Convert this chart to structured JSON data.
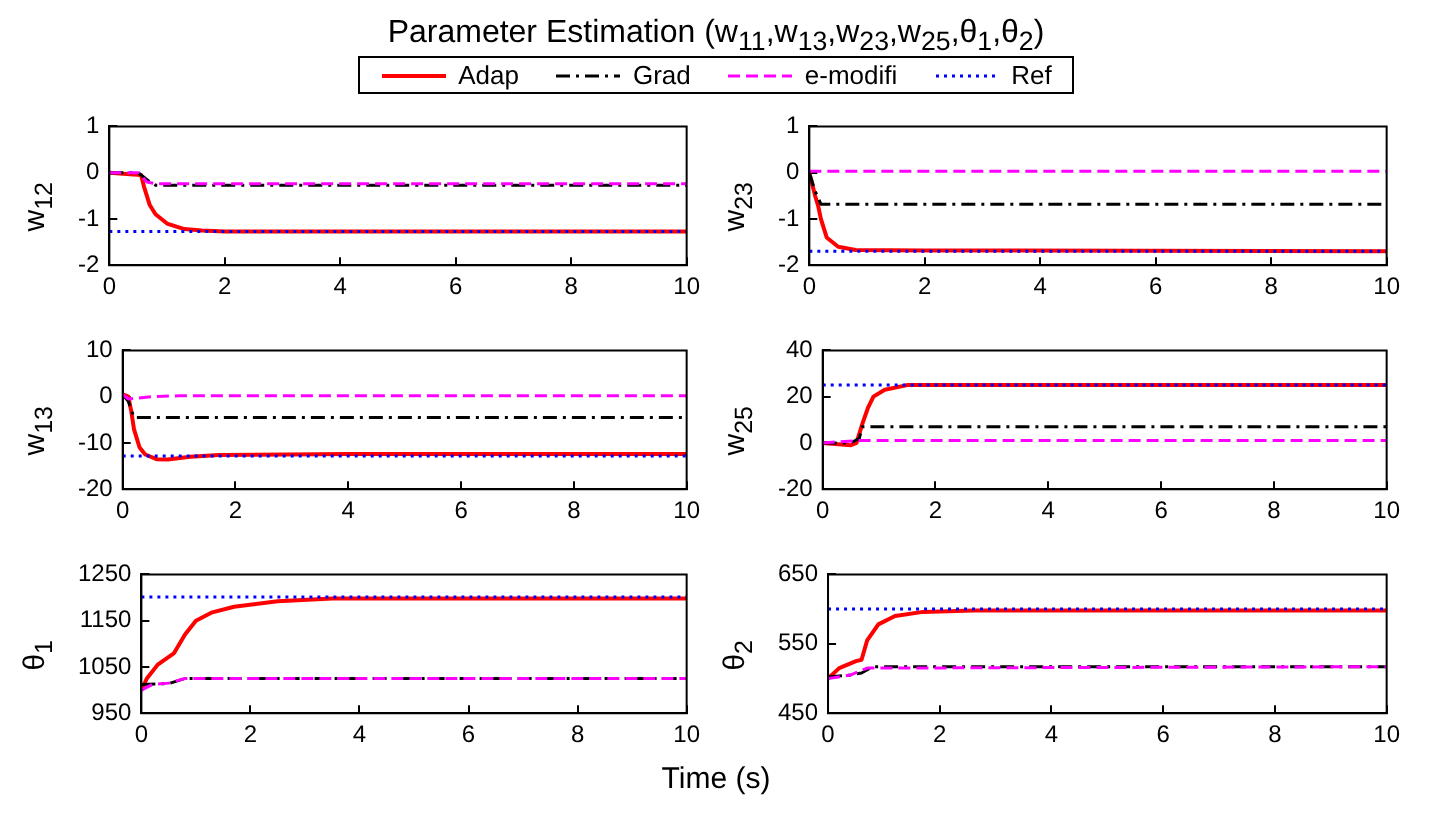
{
  "chart_data": [
    {
      "type": "line",
      "title": "Parameter Estimation (w$_{11}$,w$_{13}$,w$_{23}$,w$_{25}$,θ$_{1}$,θ$_{2}$)",
      "ylabel": "w$_{12}$",
      "xlim": [
        0,
        10
      ],
      "xticks": [
        0,
        2,
        4,
        6,
        8,
        10
      ],
      "ylim": [
        -2,
        1
      ],
      "yticks": [
        -2,
        -1,
        0,
        1
      ],
      "grid": false,
      "legend": "top",
      "marker": "none",
      "series": [
        {
          "name": "Adap",
          "color": "#ff0000",
          "line_style": "solid",
          "x": [
            0,
            0.3,
            0.55,
            0.6,
            0.7,
            0.8,
            1,
            1.3,
            1.6,
            2,
            10
          ],
          "values": [
            0,
            -0.03,
            -0.05,
            -0.3,
            -0.7,
            -0.9,
            -1.1,
            -1.22,
            -1.25,
            -1.27,
            -1.27
          ]
        },
        {
          "name": "Grad",
          "color": "#000000",
          "line_style": "dashdot",
          "x": [
            0,
            0.5,
            0.7,
            0.8,
            10
          ],
          "values": [
            0,
            0,
            -0.2,
            -0.27,
            -0.27
          ]
        },
        {
          "name": "e-modifi",
          "color": "#ff00ff",
          "line_style": "dashed",
          "x": [
            0,
            0.5,
            0.65,
            0.8,
            10
          ],
          "values": [
            0,
            0,
            -0.2,
            -0.24,
            -0.24
          ]
        },
        {
          "name": "Ref",
          "color": "#0000ff",
          "line_style": "dotted",
          "x": [
            0,
            10
          ],
          "values": [
            -1.27,
            -1.27
          ]
        }
      ]
    },
    {
      "type": "line",
      "ylabel": "w$_{23}$",
      "xlim": [
        0,
        10
      ],
      "xticks": [
        0,
        2,
        4,
        6,
        8,
        10
      ],
      "ylim": [
        -2,
        1
      ],
      "yticks": [
        -2,
        -1,
        0,
        1
      ],
      "grid": false,
      "marker": "none",
      "series": [
        {
          "color": "#ff0000",
          "line_style": "solid",
          "x": [
            0,
            0.1,
            0.15,
            0.2,
            0.3,
            0.5,
            0.8,
            2,
            10
          ],
          "values": [
            0,
            -0.5,
            -0.7,
            -1,
            -1.4,
            -1.6,
            -1.67,
            -1.68,
            -1.7
          ]
        },
        {
          "color": "#000000",
          "line_style": "dashdot",
          "x": [
            0,
            0.1,
            0.2,
            10
          ],
          "values": [
            0,
            -0.4,
            -0.68,
            -0.68
          ]
        },
        {
          "color": "#ff00ff",
          "line_style": "dashed",
          "x": [
            0,
            10
          ],
          "values": [
            0.03,
            0.03
          ]
        },
        {
          "color": "#0000ff",
          "line_style": "dotted",
          "x": [
            0,
            10
          ],
          "values": [
            -1.7,
            -1.7
          ]
        }
      ]
    },
    {
      "type": "line",
      "ylabel": "w$_{13}$",
      "xlim": [
        0,
        10
      ],
      "xticks": [
        0,
        2,
        4,
        6,
        8,
        10
      ],
      "ylim": [
        -20,
        10
      ],
      "yticks": [
        -20,
        -10,
        0,
        10
      ],
      "grid": false,
      "marker": "none",
      "series": [
        {
          "color": "#ff0000",
          "line_style": "solid",
          "x": [
            0,
            0.1,
            0.15,
            0.2,
            0.3,
            0.4,
            0.6,
            0.8,
            1.2,
            1.7,
            4,
            10
          ],
          "values": [
            0.5,
            0,
            -3,
            -7,
            -11,
            -12.5,
            -13.5,
            -13.6,
            -13,
            -12.6,
            -12.4,
            -12.4
          ]
        },
        {
          "color": "#000000",
          "line_style": "dashdot",
          "x": [
            0,
            0.1,
            0.2,
            10
          ],
          "values": [
            0.5,
            -1,
            -4.5,
            -4.5
          ]
        },
        {
          "color": "#ff00ff",
          "line_style": "dashed",
          "x": [
            0,
            0.1,
            0.5,
            1,
            10
          ],
          "values": [
            0.5,
            -0.5,
            0,
            0.2,
            0.2
          ]
        },
        {
          "color": "#0000ff",
          "line_style": "dotted",
          "x": [
            0,
            10
          ],
          "values": [
            -12.8,
            -12.8
          ]
        }
      ]
    },
    {
      "type": "line",
      "ylabel": "w$_{25}$",
      "xlim": [
        0,
        10
      ],
      "xticks": [
        0,
        2,
        4,
        6,
        8,
        10
      ],
      "ylim": [
        -20,
        40
      ],
      "yticks": [
        -20,
        0,
        20,
        40
      ],
      "grid": false,
      "marker": "none",
      "series": [
        {
          "color": "#ff0000",
          "line_style": "solid",
          "x": [
            0,
            0.5,
            0.6,
            0.7,
            0.8,
            0.9,
            1.1,
            1.5,
            10
          ],
          "values": [
            0,
            -1,
            0,
            8,
            15,
            20,
            23,
            25,
            25
          ]
        },
        {
          "color": "#000000",
          "line_style": "dashdot",
          "x": [
            0,
            0.5,
            0.65,
            0.7,
            10
          ],
          "values": [
            0,
            0,
            2,
            7,
            7
          ]
        },
        {
          "color": "#ff00ff",
          "line_style": "dashed",
          "x": [
            0,
            0.6,
            1,
            10
          ],
          "values": [
            0,
            1,
            1,
            1
          ]
        },
        {
          "color": "#0000ff",
          "line_style": "dotted",
          "x": [
            0,
            10
          ],
          "values": [
            25,
            25
          ]
        }
      ]
    },
    {
      "type": "line",
      "ylabel": "θ$_{1}$",
      "xlabel": "Time (s)",
      "xlim": [
        0,
        10
      ],
      "xticks": [
        0,
        2,
        4,
        6,
        8,
        10
      ],
      "ylim": [
        950,
        1250
      ],
      "yticks": [
        950,
        1050,
        1150,
        1250
      ],
      "grid": false,
      "marker": "none",
      "series": [
        {
          "color": "#ff0000",
          "line_style": "solid",
          "x": [
            0,
            0.1,
            0.3,
            0.6,
            0.8,
            1,
            1.3,
            1.7,
            2.5,
            3.5,
            10
          ],
          "values": [
            1000,
            1025,
            1055,
            1080,
            1120,
            1150,
            1168,
            1180,
            1192,
            1198,
            1198
          ]
        },
        {
          "color": "#000000",
          "line_style": "dashdot",
          "x": [
            0,
            0.5,
            0.8,
            10
          ],
          "values": [
            1012,
            1014,
            1025,
            1025
          ]
        },
        {
          "color": "#ff00ff",
          "line_style": "dashed",
          "x": [
            0,
            0.2,
            0.5,
            0.8,
            10
          ],
          "values": [
            1000,
            1012,
            1015,
            1025,
            1025
          ]
        },
        {
          "color": "#0000ff",
          "line_style": "dotted",
          "x": [
            0,
            10
          ],
          "values": [
            1201,
            1201
          ]
        }
      ]
    },
    {
      "type": "line",
      "ylabel": "θ$_{2}$",
      "xlim": [
        0,
        10
      ],
      "xticks": [
        0,
        2,
        4,
        6,
        8,
        10
      ],
      "ylim": [
        450,
        650
      ],
      "yticks": [
        450,
        550,
        650
      ],
      "grid": false,
      "marker": "none",
      "series": [
        {
          "color": "#ff0000",
          "line_style": "solid",
          "x": [
            0,
            0.2,
            0.5,
            0.6,
            0.7,
            0.9,
            1.2,
            1.7,
            2.6,
            10
          ],
          "values": [
            500,
            515,
            525,
            527,
            555,
            578,
            590,
            596,
            598,
            598
          ]
        },
        {
          "color": "#000000",
          "line_style": "dashdot",
          "x": [
            0,
            0.4,
            0.6,
            0.8,
            10
          ],
          "values": [
            502,
            505,
            508,
            517,
            517
          ]
        },
        {
          "color": "#ff00ff",
          "line_style": "dashed",
          "x": [
            0,
            0.4,
            0.7,
            10
          ],
          "values": [
            500,
            505,
            515,
            517
          ]
        },
        {
          "color": "#0000ff",
          "line_style": "dotted",
          "x": [
            0,
            10
          ],
          "values": [
            600,
            600
          ]
        }
      ]
    }
  ]
}
